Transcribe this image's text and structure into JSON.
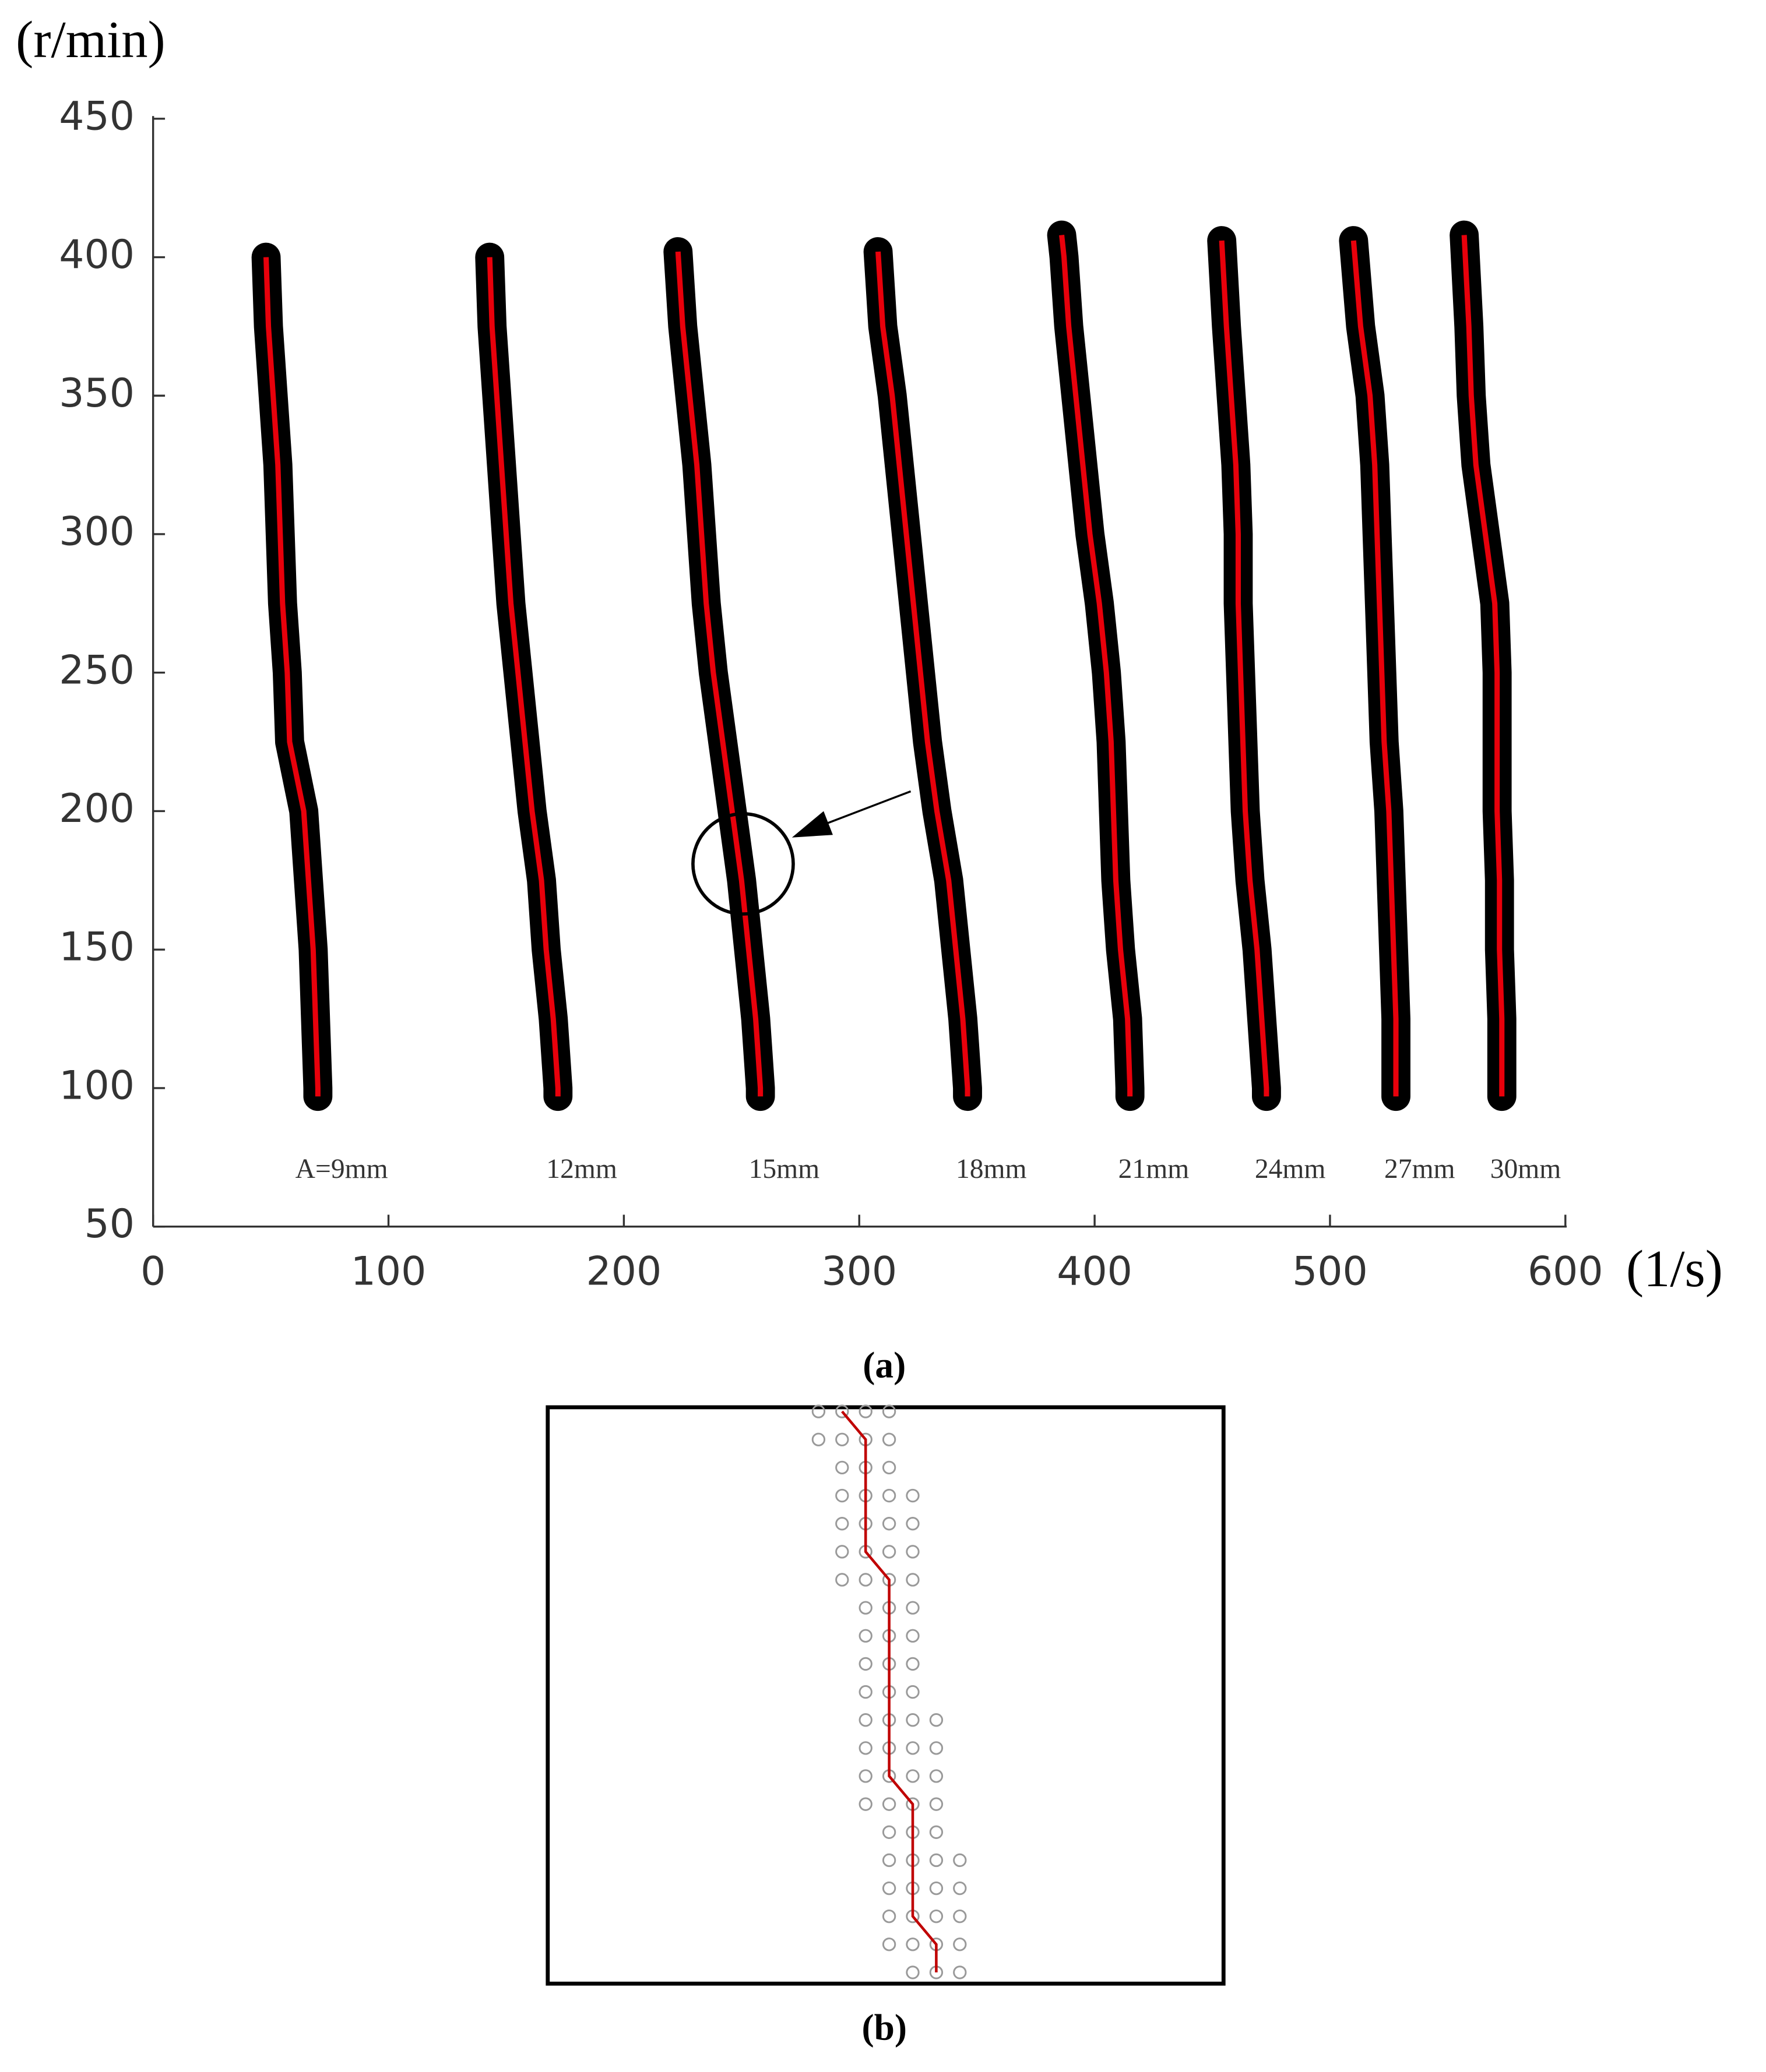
{
  "chart_data": [
    {
      "type": "line",
      "caption": "(a)",
      "ylabel": "(r/min)",
      "xlabel": "(1/s)",
      "xlim": [
        0,
        600
      ],
      "ylim": [
        50,
        450
      ],
      "xticks": [
        0,
        100,
        200,
        300,
        400,
        500,
        600
      ],
      "yticks": [
        50,
        100,
        150,
        200,
        250,
        300,
        350,
        400,
        450
      ],
      "line_color": "#e8000b",
      "marker_color": "#000000",
      "series": [
        {
          "name": "A=9mm",
          "x": [
            48,
            49,
            51,
            53,
            54,
            55,
            57,
            58,
            64,
            66,
            68,
            69,
            70,
            70
          ],
          "values": [
            400,
            375,
            350,
            325,
            300,
            275,
            250,
            225,
            200,
            175,
            150,
            125,
            100,
            97
          ]
        },
        {
          "name": "12mm",
          "x": [
            143,
            144,
            146,
            148,
            150,
            152,
            155,
            158,
            161,
            165,
            167,
            170,
            172,
            172
          ],
          "values": [
            400,
            375,
            350,
            325,
            300,
            275,
            250,
            225,
            200,
            175,
            150,
            125,
            100,
            97
          ]
        },
        {
          "name": "15mm",
          "x": [
            223,
            225,
            228,
            231,
            233,
            235,
            238,
            242,
            246,
            250,
            253,
            256,
            258,
            258
          ],
          "values": [
            402,
            375,
            350,
            325,
            300,
            275,
            250,
            225,
            200,
            175,
            150,
            125,
            100,
            97
          ]
        },
        {
          "name": "18mm",
          "x": [
            308,
            310,
            314,
            317,
            320,
            323,
            326,
            329,
            333,
            338,
            341,
            344,
            346,
            346
          ],
          "values": [
            402,
            375,
            350,
            325,
            300,
            275,
            250,
            225,
            200,
            175,
            150,
            125,
            100,
            97
          ]
        },
        {
          "name": "21mm",
          "x": [
            386,
            387,
            389,
            392,
            395,
            398,
            402,
            405,
            407,
            408,
            409,
            411,
            414,
            415,
            415
          ],
          "values": [
            408,
            400,
            375,
            350,
            325,
            300,
            275,
            250,
            225,
            200,
            175,
            150,
            125,
            100,
            97
          ]
        },
        {
          "name": "24mm",
          "x": [
            454,
            456,
            458,
            460,
            461,
            461,
            462,
            463,
            464,
            466,
            469,
            471,
            473,
            473
          ],
          "values": [
            406,
            375,
            350,
            325,
            300,
            275,
            250,
            225,
            200,
            175,
            150,
            125,
            100,
            97
          ]
        },
        {
          "name": "27mm",
          "x": [
            510,
            513,
            517,
            519,
            520,
            521,
            522,
            523,
            525,
            526,
            527,
            528,
            528,
            528
          ],
          "values": [
            406,
            375,
            350,
            325,
            300,
            275,
            250,
            225,
            200,
            175,
            150,
            125,
            100,
            97
          ]
        },
        {
          "name": "30mm",
          "x": [
            557,
            559,
            560,
            562,
            566,
            570,
            571,
            571,
            571,
            572,
            572,
            573,
            573,
            573
          ],
          "values": [
            408,
            375,
            350,
            325,
            300,
            275,
            250,
            225,
            200,
            175,
            150,
            125,
            100,
            97
          ]
        }
      ]
    },
    {
      "type": "scatter",
      "caption": "(b)",
      "xlim": [
        -11.5,
        17.2
      ],
      "ylim": [
        20.4,
        -0.15
      ],
      "series": [
        {
          "mode": "markers",
          "color": "#999999",
          "x": [
            0,
            1,
            2,
            3,
            0,
            1,
            2,
            3,
            1,
            2,
            3,
            1,
            2,
            3,
            4,
            1,
            2,
            3,
            4,
            1,
            2,
            3,
            4,
            1,
            2,
            3,
            4,
            2,
            3,
            4,
            2,
            3,
            4,
            2,
            3,
            4,
            2,
            3,
            4,
            2,
            3,
            4,
            5,
            2,
            3,
            4,
            5,
            2,
            3,
            4,
            5,
            2,
            3,
            4,
            5,
            3,
            4,
            5,
            3,
            4,
            5,
            6,
            3,
            4,
            5,
            6,
            3,
            4,
            5,
            6,
            3,
            4,
            5,
            6,
            4,
            5,
            6
          ],
          "values": [
            0,
            0,
            0,
            0,
            1,
            1,
            1,
            1,
            2,
            2,
            2,
            3,
            3,
            3,
            3,
            4,
            4,
            4,
            4,
            5,
            5,
            5,
            5,
            6,
            6,
            6,
            6,
            7,
            7,
            7,
            8,
            8,
            8,
            9,
            9,
            9,
            10,
            10,
            10,
            11,
            11,
            11,
            11,
            12,
            12,
            12,
            12,
            13,
            13,
            13,
            13,
            14,
            14,
            14,
            14,
            15,
            15,
            15,
            16,
            16,
            16,
            16,
            17,
            17,
            17,
            17,
            18,
            18,
            18,
            18,
            19,
            19,
            19,
            19,
            20,
            20,
            20
          ]
        },
        {
          "mode": "line",
          "color": "#c00000",
          "x": [
            1,
            2,
            2,
            3,
            3,
            4,
            4,
            5,
            5
          ],
          "values": [
            0,
            1,
            5,
            6,
            13,
            14,
            18,
            19,
            20
          ]
        }
      ]
    }
  ]
}
